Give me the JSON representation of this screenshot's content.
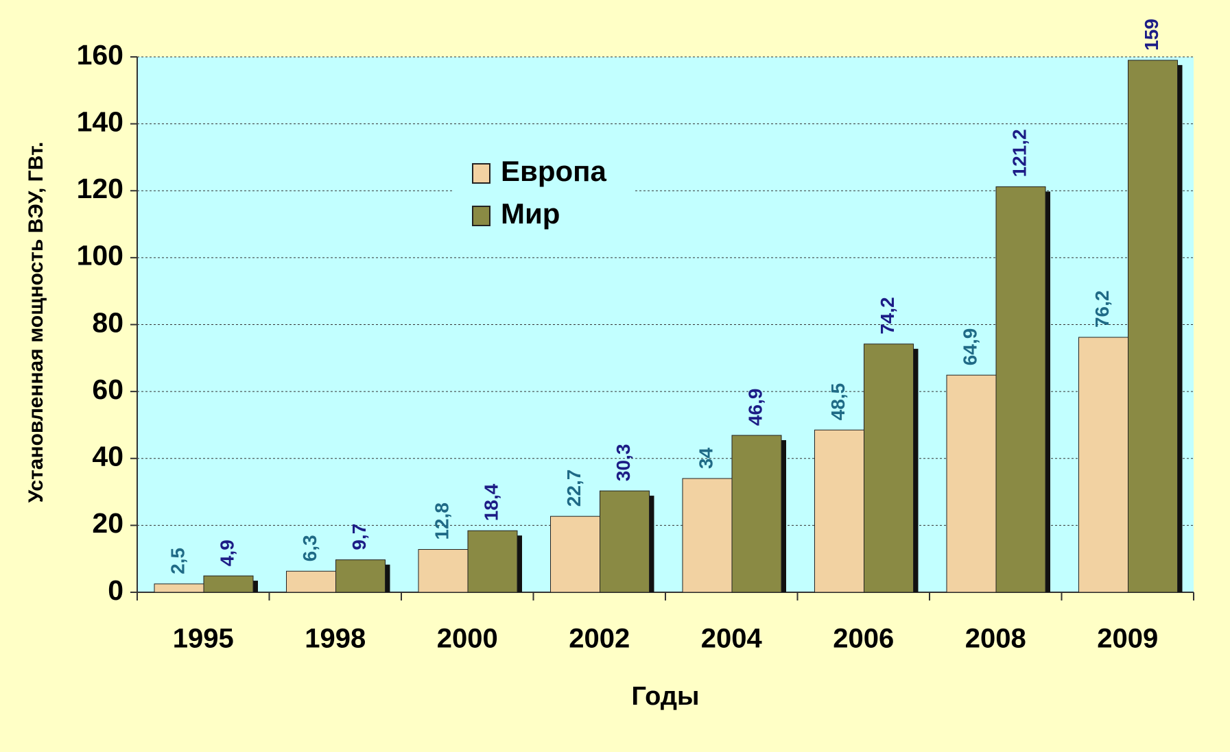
{
  "chart_data": {
    "type": "bar",
    "y_label": "Установленная мощность ВЭУ, ГВт.",
    "x_label": "Годы",
    "categories": [
      "1995",
      "1998",
      "2000",
      "2002",
      "2004",
      "2006",
      "2008",
      "2009"
    ],
    "series": [
      {
        "name": "Европа",
        "color": "#f2d2a2",
        "label_color": "#1f6a86",
        "values": [
          2.5,
          6.3,
          12.8,
          22.7,
          34,
          48.5,
          64.9,
          76.2
        ],
        "value_labels": [
          "2,5",
          "6,3",
          "12,8",
          "22,7",
          "34",
          "48,5",
          "64,9",
          "76,2"
        ]
      },
      {
        "name": "Мир",
        "color": "#8a8a44",
        "label_color": "#1c1c86",
        "values": [
          4.9,
          9.7,
          18.4,
          30.3,
          46.9,
          74.2,
          121.2,
          159
        ],
        "value_labels": [
          "4,9",
          "9,7",
          "18,4",
          "30,3",
          "46,9",
          "74,2",
          "121,2",
          "159"
        ]
      }
    ],
    "ylim": [
      0,
      160
    ],
    "yticks": [
      0,
      20,
      40,
      60,
      80,
      100,
      120,
      140,
      160
    ],
    "grid": true
  }
}
